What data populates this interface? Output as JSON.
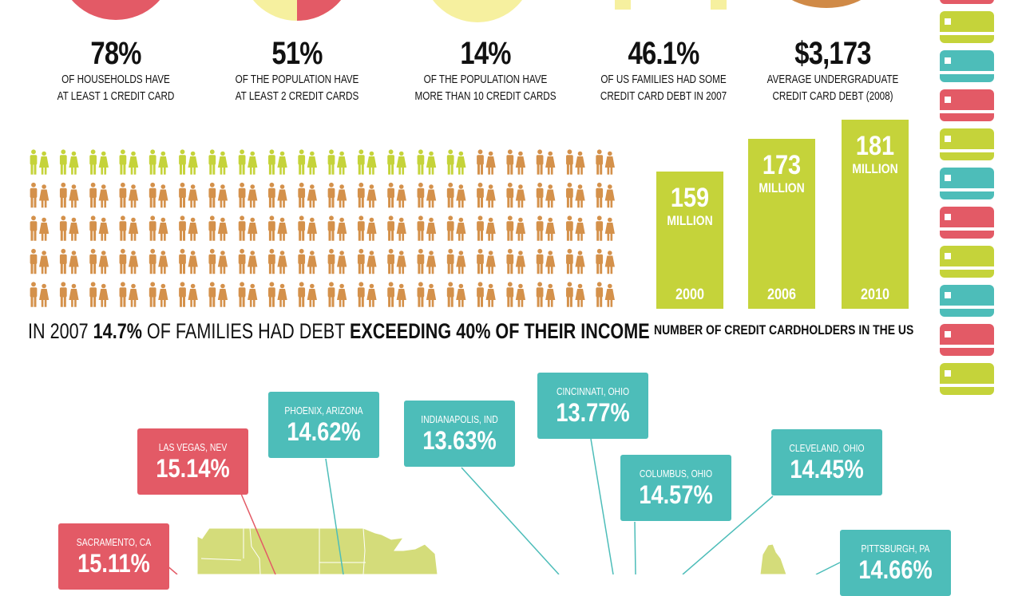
{
  "colors": {
    "red": "#e35a66",
    "teal": "#4dbdb9",
    "green": "#c5d33a",
    "orange": "#d4914b",
    "yellow": "#f6f09f",
    "brown": "#d08a47",
    "map": "#d4dc7a"
  },
  "stats": [
    {
      "value": "78%",
      "line1": "OF HOUSEHOLDS HAVE",
      "line2": "AT LEAST 1 CREDIT CARD"
    },
    {
      "value": "51%",
      "line1": "OF THE POPULATION HAVE",
      "line2": "AT LEAST 2 CREDIT CARDS"
    },
    {
      "value": "14%",
      "line1": "OF THE POPULATION HAVE",
      "line2": "MORE THAN 10 CREDIT CARDS"
    },
    {
      "value": "46.1%",
      "line1": "OF US FAMILIES HAD SOME",
      "line2": "CREDIT CARD DEBT IN 2007"
    },
    {
      "value": "$3,173",
      "line1": "AVERAGE UNDERGRADUATE",
      "line2": "CREDIT CARD DEBT (2008)"
    }
  ],
  "families": {
    "total": 100,
    "highlighted": 15,
    "caption": {
      "part1": "IN 2007 ",
      "part2": "14.7%",
      "part3": " OF FAMILIES HAD DEBT ",
      "part4": "EXCEEDING 40% OF THEIR INCOME"
    }
  },
  "chart_data": {
    "type": "bar",
    "categories": [
      "2000",
      "2006",
      "2010"
    ],
    "values": [
      159,
      173,
      181
    ],
    "value_labels": [
      "159",
      "173",
      "181"
    ],
    "unit": "MILLION",
    "title": "NUMBER OF CREDIT CARDHOLDERS IN THE US"
  },
  "card_stack": [
    "red",
    "green",
    "teal",
    "red",
    "green",
    "teal",
    "red",
    "green",
    "teal",
    "red",
    "green"
  ],
  "cities": [
    {
      "name": "LAS VEGAS, NEV",
      "value": "15.14%",
      "color": "red"
    },
    {
      "name": "PHOENIX, ARIZONA",
      "value": "14.62%",
      "color": "teal"
    },
    {
      "name": "INDIANAPOLIS, IND",
      "value": "13.63%",
      "color": "teal"
    },
    {
      "name": "CINCINNATI, OHIO",
      "value": "13.77%",
      "color": "teal"
    },
    {
      "name": "COLUMBUS, OHIO",
      "value": "14.57%",
      "color": "teal"
    },
    {
      "name": "CLEVELAND, OHIO",
      "value": "14.45%",
      "color": "teal"
    },
    {
      "name": "SACRAMENTO, CA",
      "value": "15.11%",
      "color": "red"
    },
    {
      "name": "PITTSBURGH, PA",
      "value": "14.66%",
      "color": "teal"
    }
  ]
}
